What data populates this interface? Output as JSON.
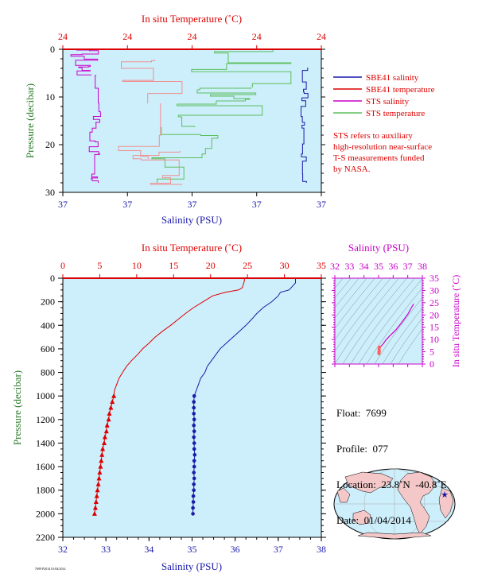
{
  "top_panel": {
    "xlabel_top": "In situ Temperature (˚C)",
    "xlabel_bottom": "Salinity (PSU)",
    "ylabel": "Pressure (decibar)",
    "top_ticks": [
      "24",
      "24",
      "24",
      "24",
      "24"
    ],
    "bottom_ticks": [
      "37",
      "37",
      "37",
      "37",
      "37"
    ],
    "y_ticks": [
      "0",
      "10",
      "20",
      "30"
    ]
  },
  "legend": {
    "items": [
      {
        "label": "SBE41 salinity",
        "color": "#1a1aaa"
      },
      {
        "label": "SBE41 temperature",
        "color": "#dd0000"
      },
      {
        "label": "STS salinity",
        "color": "#cc00cc"
      },
      {
        "label": "STS temperature",
        "color": "#5cbf5c"
      }
    ],
    "note_lines": [
      "STS refers to auxiliary",
      "high-resolution near-surface",
      "T-S measurements funded",
      "by NASA."
    ]
  },
  "main_panel": {
    "xlabel_top": "In situ Temperature (˚C)",
    "xlabel_bottom": "Salinity (PSU)",
    "ylabel": "Pressure (decibar)",
    "top_ticks": [
      "0",
      "5",
      "10",
      "15",
      "20",
      "25",
      "30",
      "35"
    ],
    "bottom_ticks": [
      "32",
      "33",
      "34",
      "35",
      "36",
      "37",
      "38"
    ],
    "y_ticks": [
      "0",
      "200",
      "400",
      "600",
      "800",
      "1000",
      "1200",
      "1400",
      "1600",
      "1800",
      "2000",
      "2200"
    ]
  },
  "ts_panel": {
    "xlabel_top": "Salinity (PSU)",
    "ylabel_right": "In situ Temperature (˚C)",
    "top_ticks": [
      "32",
      "33",
      "34",
      "35",
      "36",
      "37",
      "38"
    ],
    "right_ticks": [
      "0",
      "5",
      "10",
      "15",
      "20",
      "25",
      "30",
      "35"
    ]
  },
  "float_info": {
    "float": "Float:  7699",
    "profile": "Profile:  077",
    "location": "Location:  23.8˚N  -40.8˚E",
    "date": "Date:  01/04/2014"
  },
  "footer_note": "7699 P2014 01/04/2014",
  "chart_data": [
    {
      "type": "line",
      "name": "main-profile",
      "ylim": [
        2200,
        0
      ],
      "temperature_xlim": [
        0,
        35
      ],
      "salinity_xlim": [
        32,
        38
      ],
      "series": [
        {
          "name": "",
          "kind": "temperature",
          "color": "#dd0000",
          "pressure": [
            0,
            20,
            40,
            60,
            80,
            100,
            120,
            150,
            200,
            250,
            300,
            350,
            400,
            450,
            500,
            550,
            600,
            650,
            700,
            750,
            800,
            850,
            900,
            950,
            1000
          ],
          "values": [
            24.6,
            24.6,
            24.5,
            24.4,
            24.3,
            23.8,
            22.0,
            20.3,
            19.0,
            17.7,
            16.6,
            15.6,
            14.6,
            13.5,
            12.5,
            11.7,
            10.8,
            10.1,
            9.3,
            8.6,
            8.1,
            7.6,
            7.3,
            7.0,
            6.9
          ]
        },
        {
          "name": "",
          "kind": "salinity",
          "color": "#1a1aaa",
          "pressure": [
            0,
            20,
            40,
            60,
            80,
            100,
            120,
            150,
            200,
            250,
            300,
            350,
            400,
            450,
            500,
            550,
            600,
            650,
            700,
            750,
            800,
            850,
            900,
            950,
            1000
          ],
          "values": [
            37.4,
            37.4,
            37.4,
            37.35,
            37.3,
            37.25,
            37.05,
            37.0,
            36.85,
            36.65,
            36.5,
            36.38,
            36.25,
            36.1,
            35.95,
            35.8,
            35.65,
            35.55,
            35.45,
            35.35,
            35.3,
            35.2,
            35.15,
            35.1,
            35.05
          ]
        },
        {
          "name": "",
          "kind": "temperature-bottle",
          "color": "#dd0000",
          "pressure": [
            1000,
            1050,
            1100,
            1150,
            1200,
            1250,
            1300,
            1350,
            1400,
            1450,
            1500,
            1550,
            1600,
            1650,
            1700,
            1750,
            1800,
            1850,
            1900,
            1950,
            2000
          ],
          "values": [
            6.9,
            6.7,
            6.5,
            6.3,
            6.2,
            6.0,
            5.9,
            5.7,
            5.6,
            5.4,
            5.3,
            5.2,
            5.1,
            5.0,
            4.9,
            4.8,
            4.7,
            4.6,
            4.5,
            4.4,
            4.3
          ]
        },
        {
          "name": "",
          "kind": "salinity-bottle",
          "color": "#1a1aaa",
          "pressure": [
            1000,
            1050,
            1100,
            1150,
            1200,
            1250,
            1300,
            1350,
            1400,
            1450,
            1500,
            1550,
            1600,
            1650,
            1700,
            1750,
            1800,
            1850,
            1900,
            1950,
            2000
          ],
          "values": [
            35.05,
            35.04,
            35.04,
            35.04,
            35.05,
            35.04,
            35.05,
            35.04,
            35.05,
            35.05,
            35.06,
            35.05,
            35.05,
            35.04,
            35.05,
            35.04,
            35.04,
            35.03,
            35.03,
            35.02,
            35.02
          ]
        }
      ]
    },
    {
      "type": "scatter",
      "name": "ts-diagram",
      "xlim": [
        32,
        38
      ],
      "ylim": [
        0,
        35
      ],
      "series": [
        {
          "name": "",
          "color": "#cc00cc",
          "x": [
            37.4,
            37.3,
            37.0,
            36.6,
            36.2,
            35.8,
            35.5,
            35.3,
            35.15,
            35.05
          ],
          "y": [
            24.5,
            23.5,
            20.3,
            17.0,
            14.0,
            11.7,
            9.8,
            8.1,
            7.2,
            6.9
          ]
        },
        {
          "name": "",
          "color": "#ff6060",
          "x": [
            35.05,
            35.04,
            35.04,
            35.03,
            35.02
          ],
          "y": [
            6.9,
            6.0,
            5.3,
            4.8,
            4.3
          ]
        }
      ]
    }
  ]
}
